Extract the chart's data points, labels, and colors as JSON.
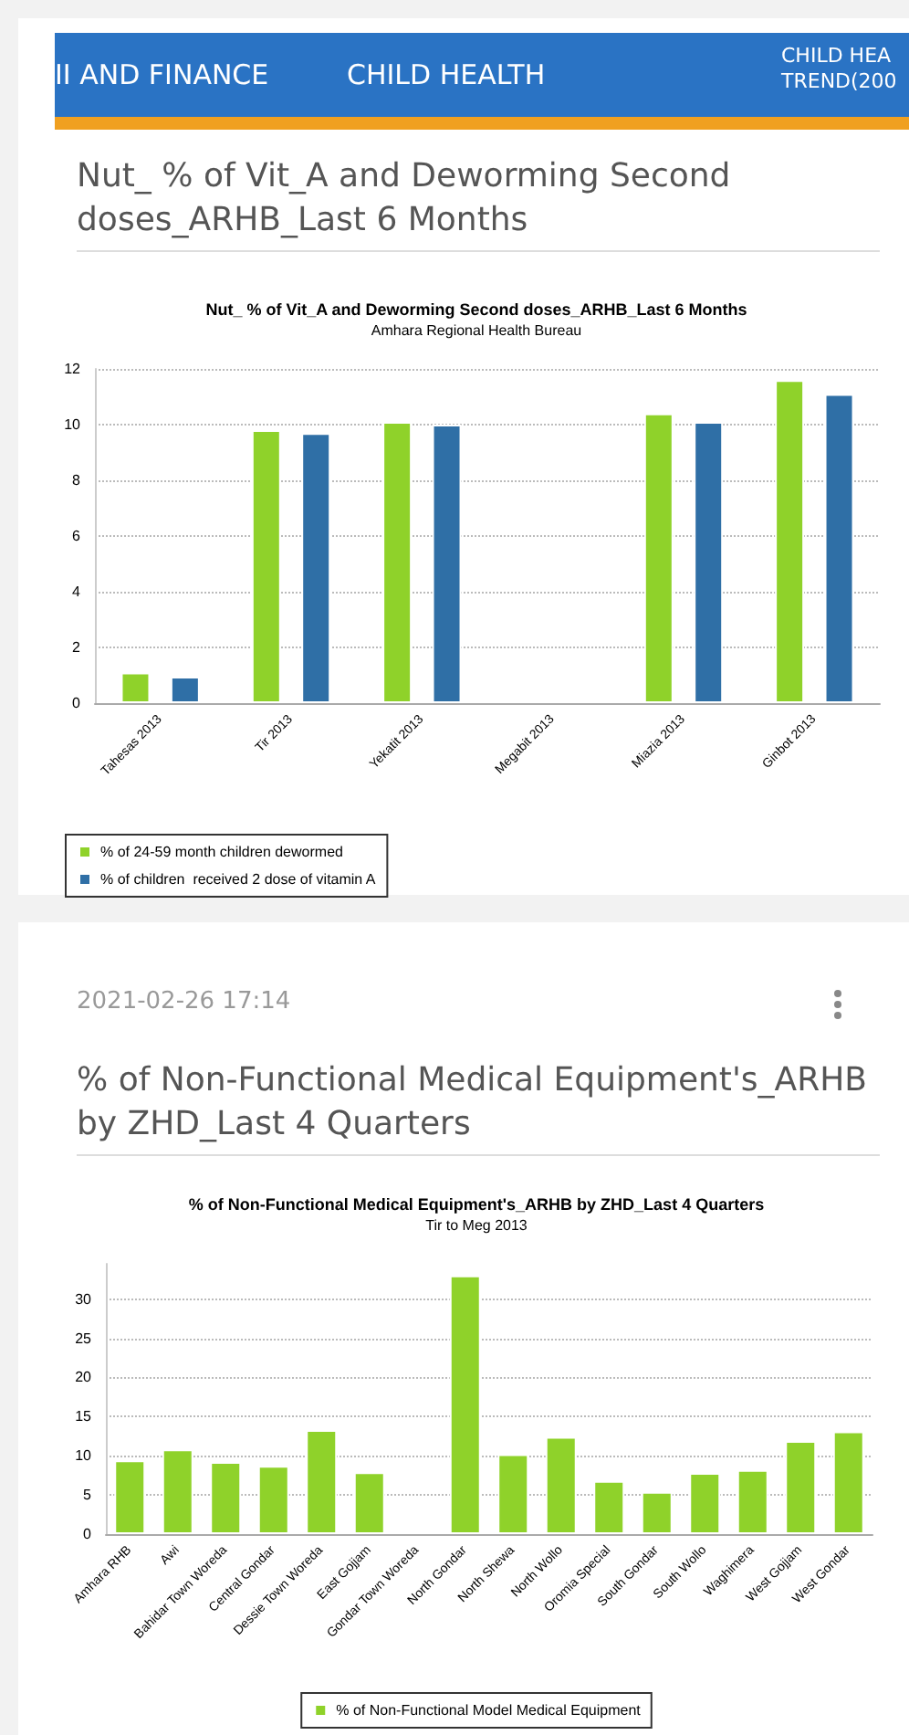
{
  "chart_data": [
    {
      "type": "bar",
      "title": "Nut_ % of Vit_A and Deworming Second doses_ARHB_Last 6 Months",
      "subtitle": "Amhara Regional Health Bureau",
      "annotations": [
        "II AND FINANCE",
        "CHILD HEALTH",
        "CHILD HEA TREND(200",
        "Nut_ % of Vit_A and Deworming Second doses_ARHB_Last 6 Months"
      ],
      "categories": [
        "Tahesas 2013",
        "Tir 2013",
        "Yekatit 2013",
        "Megabit 2013",
        "Miazia 2013",
        "Ginbot 2013"
      ],
      "series": [
        {
          "name": "% of 24-59 month children dewormed",
          "color": "#8fd22a",
          "values": [
            1.1,
            9.8,
            10.1,
            null,
            10.4,
            11.6
          ]
        },
        {
          "name": "% of children  received 2 dose of vitamin A",
          "color": "#2f6fa6",
          "values": [
            0.95,
            9.7,
            10.0,
            null,
            10.1,
            11.1
          ]
        }
      ],
      "ylim": [
        0,
        12
      ],
      "yticks": [
        0,
        2,
        4,
        6,
        8,
        10,
        12
      ],
      "grid": "y",
      "legend": "bottom"
    },
    {
      "type": "bar",
      "title": "% of Non-Functional Medical Equipment's_ARHB by ZHD_Last 4 Quarters",
      "subtitle": "Tir to Meg 2013",
      "annotations": [
        "2021-02-26 17:14",
        "% of Non-Functional Medical Equipment's_ARHB by ZHD_Last 4 Quarters"
      ],
      "categories": [
        "Amhara RHB",
        "Awi",
        "Bahidar Town Woreda",
        "Central Gondar",
        "Dessie Town Woreda",
        "East Gojjam",
        "Gondar Town Woreda",
        "North Gondar",
        "North Shewa",
        "North Wollo",
        "Oromia Special",
        "South Gondar",
        "South Wollo",
        "Waghimera",
        "West Gojjam",
        "West Gondar"
      ],
      "series": [
        {
          "name": "% of Non-Functional Model Medical Equipment",
          "color": "#8fd22a",
          "values": [
            9.4,
            10.8,
            9.2,
            8.7,
            13.3,
            7.9,
            null,
            33,
            10.2,
            12.4,
            6.8,
            5.4,
            7.8,
            8.2,
            11.9,
            13.1
          ]
        }
      ],
      "ylim": [
        0,
        34.5
      ],
      "yticks": [
        0,
        5,
        10,
        15,
        20,
        25,
        30
      ],
      "grid": "y",
      "legend": "bottom"
    }
  ]
}
